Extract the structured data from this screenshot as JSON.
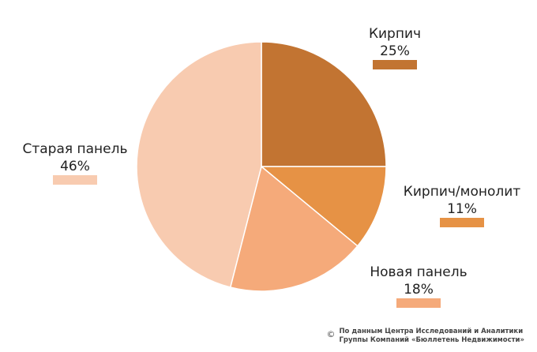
{
  "chart_data": {
    "type": "pie",
    "title": "",
    "slices": [
      {
        "label": "Кирпич",
        "value": 25,
        "value_label": "25%",
        "color": "#c27432"
      },
      {
        "label": "Кирпич/монолит",
        "value": 11,
        "value_label": "11%",
        "color": "#e69245"
      },
      {
        "label": "Новая панель",
        "value": 18,
        "value_label": "18%",
        "color": "#f5aa7a"
      },
      {
        "label": "Старая панель",
        "value": 46,
        "value_label": "46%",
        "color": "#f8cbb0"
      }
    ],
    "start_angle": "12 o'clock",
    "direction": "clockwise"
  },
  "source": {
    "symbol": "©",
    "line1": "По данным Центра Исследований и Аналитики",
    "line2": "Группы Компаний «Бюллетень Недвижимости»"
  }
}
